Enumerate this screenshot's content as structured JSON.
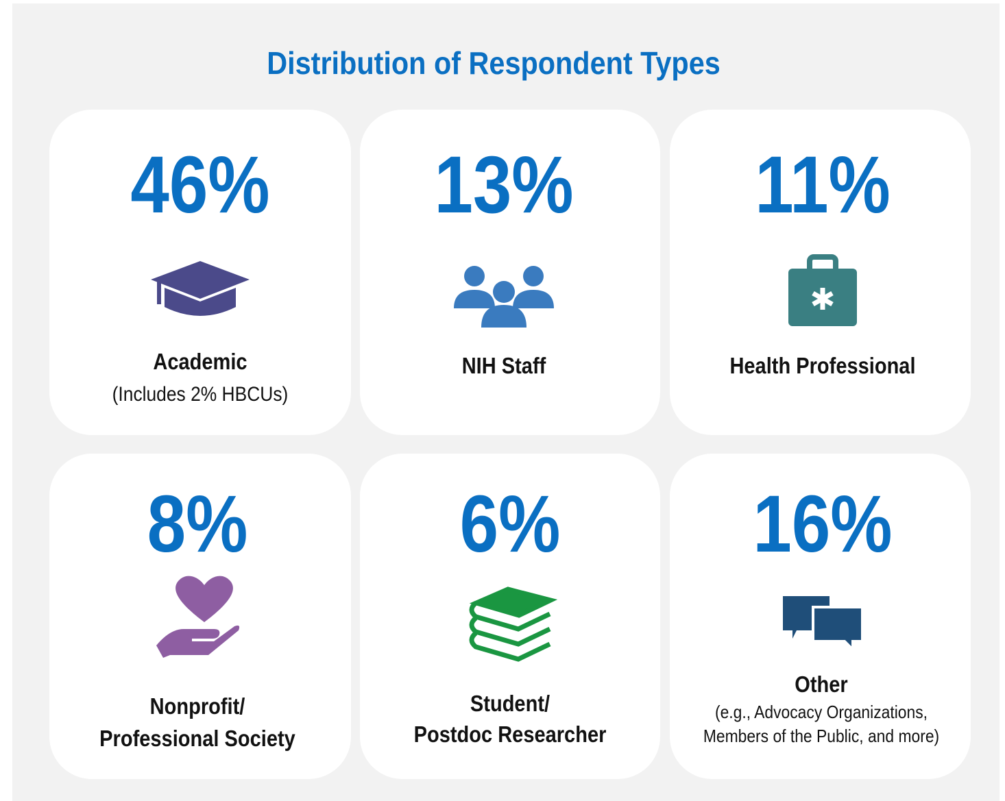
{
  "title": "Distribution of Respondent Types",
  "cards": [
    {
      "value": "46%",
      "label": [
        "Academic"
      ],
      "note": [
        "(Includes 2% HBCUs)"
      ]
    },
    {
      "value": "13%",
      "label": [
        "NIH Staff"
      ],
      "note": []
    },
    {
      "value": "11%",
      "label": [
        "Health Professional"
      ],
      "note": []
    },
    {
      "value": "8%",
      "label": [
        "Nonprofit/",
        "Professional Society"
      ],
      "note": []
    },
    {
      "value": "6%",
      "label": [
        "Student/",
        "Postdoc Researcher"
      ],
      "note": []
    },
    {
      "value": "16%",
      "label": [
        "Other"
      ],
      "note": [
        "(e.g., Advocacy Organizations,",
        "Members of the Public, and more)"
      ]
    }
  ]
}
